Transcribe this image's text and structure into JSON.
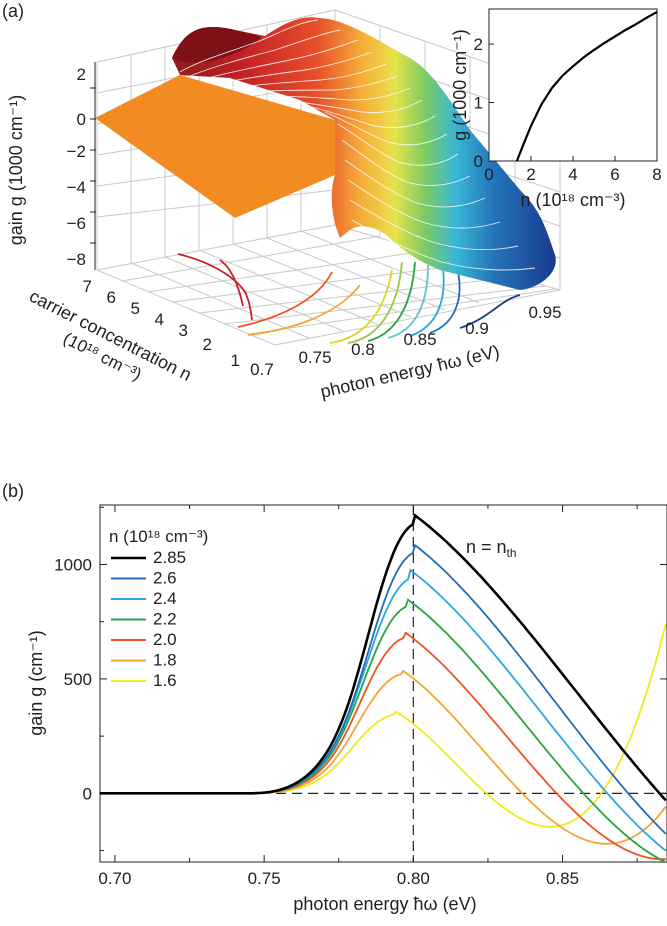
{
  "panel_a": {
    "label": "(a)",
    "z_axis_label": "gain g (1000 cm⁻¹)",
    "z_ticks": [
      "2",
      "0",
      "−2",
      "−4",
      "−6",
      "−8"
    ],
    "n_axis_label_line1": "carrier concentration n",
    "n_axis_label_line2": "(10¹⁸ cm⁻³)",
    "n_ticks": [
      "7",
      "6",
      "5",
      "4",
      "3",
      "2",
      "1"
    ],
    "e_axis_label": "photon energy ħω (eV)",
    "e_ticks": [
      "0.7",
      "0.75",
      "0.8",
      "0.85",
      "0.9",
      "0.95"
    ]
  },
  "inset": {
    "ylabel": "g (1000 cm⁻¹)",
    "xlabel": "n (10¹⁸ cm⁻³)",
    "yticks": [
      "0",
      "1",
      "2"
    ],
    "xticks": [
      "0",
      "2",
      "4",
      "6",
      "8"
    ]
  },
  "panel_b": {
    "label": "(b)",
    "legend_title": "n (10¹⁸ cm⁻³)",
    "annotation": "n = n",
    "annotation_sub": "th",
    "xlabel": "photon energy ħω (eV)",
    "ylabel": "gain g (cm⁻¹)"
  },
  "chart_data": [
    {
      "type": "line",
      "title": "",
      "xlabel": "n (10¹⁸ cm⁻³)",
      "ylabel": "g (1000 cm⁻¹)",
      "xlim": [
        0,
        8
      ],
      "ylim": [
        0,
        2.6
      ],
      "series": [
        {
          "x": [
            1.33,
            1.6,
            2.0,
            2.5,
            3.0,
            3.5,
            4.0,
            4.5,
            5.0,
            5.5,
            6.0,
            6.5,
            7.0,
            7.5,
            8.0
          ],
          "values": [
            0.0,
            0.25,
            0.6,
            0.97,
            1.25,
            1.46,
            1.62,
            1.77,
            1.9,
            2.02,
            2.13,
            2.24,
            2.34,
            2.45,
            2.55
          ],
          "color": "#000000"
        }
      ]
    },
    {
      "type": "line",
      "title": "",
      "xlabel": "photon energy ħω (eV)",
      "ylabel": "gain g (cm⁻¹)",
      "xlim": [
        0.695,
        0.885
      ],
      "ylim": [
        -300,
        1260
      ],
      "xticks": [
        0.7,
        0.75,
        0.8,
        0.85
      ],
      "yticks": [
        0,
        500,
        1000
      ],
      "x_tick_labels": [
        "0.70",
        "0.75",
        "0.80",
        "0.85"
      ],
      "y_tick_labels": [
        "0",
        "500",
        "1000"
      ],
      "reference_lines": {
        "horizontal": 0,
        "vertical": 0.8,
        "style": "dashed"
      },
      "legend_position": "top-left",
      "series": [
        {
          "name": "2.85",
          "color": "#000000",
          "peak_x": 0.8,
          "peak_y": 1220,
          "zero_x": 0.8825
        },
        {
          "name": "2.6",
          "color": "#1f6db5",
          "peak_x": 0.8,
          "peak_y": 1090,
          "zero_x": 0.872
        },
        {
          "name": "2.4",
          "color": "#2aa7df",
          "peak_x": 0.799,
          "peak_y": 975,
          "zero_x": 0.865
        },
        {
          "name": "2.2",
          "color": "#26a540",
          "peak_x": 0.798,
          "peak_y": 848,
          "zero_x": 0.857
        },
        {
          "name": "2.0",
          "color": "#ef5322",
          "peak_x": 0.797,
          "peak_y": 705,
          "zero_x": 0.848
        },
        {
          "name": "1.8",
          "color": "#f5a533",
          "peak_x": 0.796,
          "peak_y": 540,
          "zero_x": 0.8365
        },
        {
          "name": "1.6",
          "color": "#f1e91d",
          "peak_x": 0.794,
          "peak_y": 358,
          "zero_x": 0.8245
        }
      ]
    }
  ]
}
